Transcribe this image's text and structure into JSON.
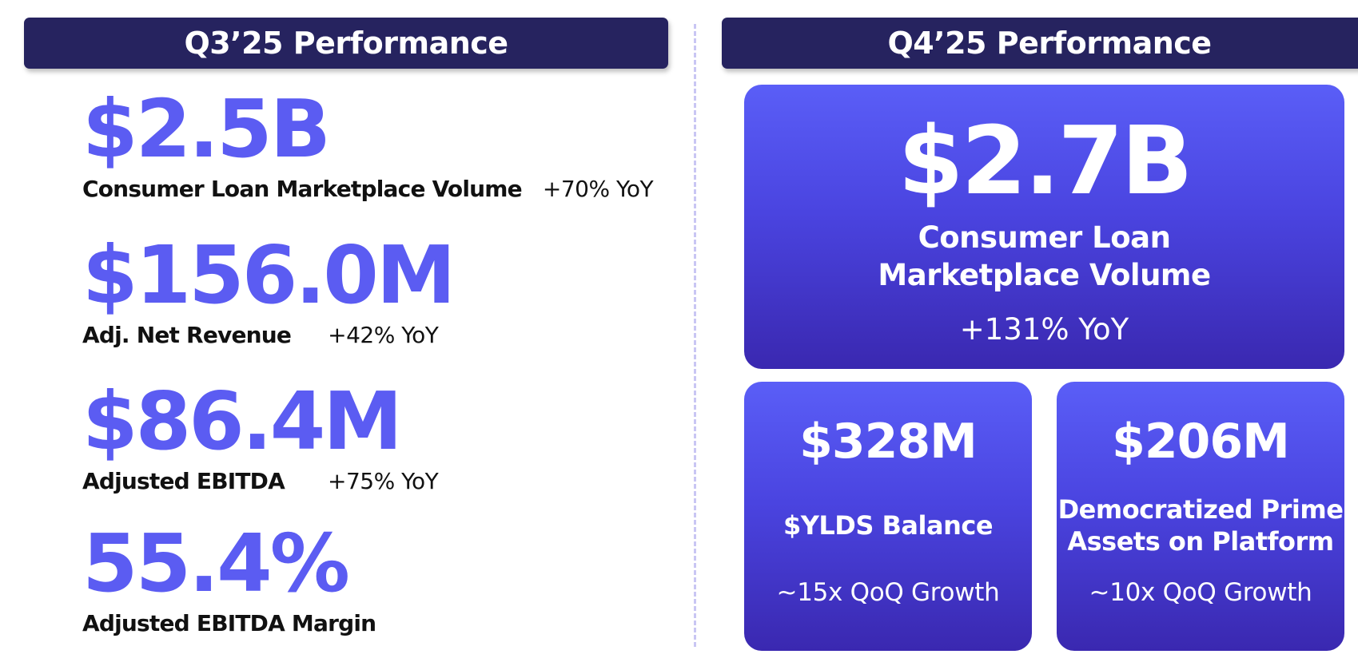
{
  "left_panel": {
    "title": "Q3’25 Performance",
    "metrics": [
      {
        "value": "$2.5B",
        "label": "Consumer Loan Marketplace Volume",
        "yoy": "+70% YoY"
      },
      {
        "value": "$156.0M",
        "label": "Adj. Net Revenue",
        "yoy": "+42% YoY"
      },
      {
        "value": "$86.4M",
        "label": "Adjusted EBITDA",
        "yoy": "+75% YoY"
      },
      {
        "value": "55.4%",
        "label": "Adjusted EBITDA Margin",
        "yoy": ""
      }
    ]
  },
  "right_panel": {
    "title": "Q4’25 Performance",
    "main_card": {
      "value": "$2.7B",
      "label_line1": "Consumer Loan",
      "label_line2": "Marketplace Volume",
      "yoy": "+131% YoY"
    },
    "cards": [
      {
        "value": "$328M",
        "label_line1": "$YLDS Balance",
        "label_line2": "",
        "growth": "~15x QoQ Growth"
      },
      {
        "value": "$206M",
        "label_line1": "Democratized Prime",
        "label_line2": "Assets on Platform",
        "growth": "~10x QoQ Growth"
      }
    ]
  },
  "colors": {
    "header_bg": "#26235f",
    "accent": "#5b5cf2",
    "card_gradient_top": "#5a5ef7",
    "card_gradient_bottom": "#3a28b0",
    "divider": "#c9c6f3"
  }
}
